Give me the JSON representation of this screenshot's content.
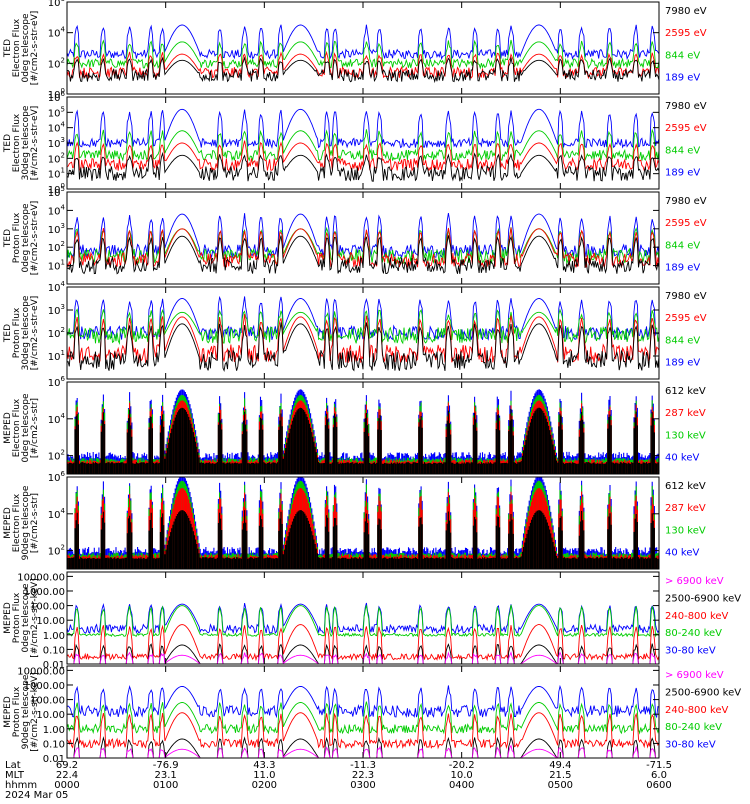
{
  "chart_data": [
    {
      "type": "line",
      "ylabel": [
        "TED",
        "Electron Flux",
        "0deg telescope",
        "[#/cm2-s-str-eV]"
      ],
      "yscale": "log",
      "ytick_style": "pow",
      "ylim_exp": [
        0,
        6
      ],
      "ytick_exps": [
        0,
        2,
        4,
        6
      ],
      "fill_to_bottom": false,
      "series": [
        {
          "name": "7980 eV",
          "color": "#000000",
          "base": 1.2,
          "noise": 0.4,
          "peak": 1.0
        },
        {
          "name": "2595 eV",
          "color": "#ff0000",
          "base": 1.4,
          "noise": 0.35,
          "peak": 1.2
        },
        {
          "name": "844 eV",
          "color": "#00cc00",
          "base": 2.0,
          "noise": 0.3,
          "peak": 1.4
        },
        {
          "name": "189 eV",
          "color": "#0000ff",
          "base": 2.6,
          "noise": 0.3,
          "peak": 1.9
        }
      ]
    },
    {
      "type": "line",
      "ylabel": [
        "TED",
        "Electron Flux",
        "30deg telescope",
        "[#/cm2-s-str-eV]"
      ],
      "yscale": "log",
      "ytick_style": "pow",
      "ylim_exp": [
        0,
        6
      ],
      "ytick_exps": [
        0,
        1,
        2,
        3,
        4,
        5,
        6
      ],
      "fill_to_bottom": false,
      "series": [
        {
          "name": "7980 eV",
          "color": "#000000",
          "base": 1.0,
          "noise": 0.5,
          "peak": 1.2
        },
        {
          "name": "2595 eV",
          "color": "#ff0000",
          "base": 1.6,
          "noise": 0.4,
          "peak": 1.4
        },
        {
          "name": "844 eV",
          "color": "#00cc00",
          "base": 2.2,
          "noise": 0.35,
          "peak": 1.6
        },
        {
          "name": "189 eV",
          "color": "#0000ff",
          "base": 3.0,
          "noise": 0.3,
          "peak": 2.2
        }
      ]
    },
    {
      "type": "line",
      "ylabel": [
        "TED",
        "Proton Flux",
        "0deg telescope",
        "[#/cm2-s-str-eV]"
      ],
      "yscale": "log",
      "ytick_style": "pow",
      "ylim_exp": [
        0,
        5
      ],
      "ytick_exps": [
        1,
        2,
        3,
        4,
        5
      ],
      "fill_to_bottom": false,
      "series": [
        {
          "name": "7980 eV",
          "color": "#000000",
          "base": 1.0,
          "noise": 0.45,
          "peak": 1.6
        },
        {
          "name": "2595 eV",
          "color": "#ff0000",
          "base": 1.3,
          "noise": 0.4,
          "peak": 1.7
        },
        {
          "name": "844 eV",
          "color": "#00cc00",
          "base": 1.5,
          "noise": 0.4,
          "peak": 1.5
        },
        {
          "name": "189 eV",
          "color": "#0000ff",
          "base": 1.8,
          "noise": 0.35,
          "peak": 2.0
        }
      ]
    },
    {
      "type": "line",
      "ylabel": [
        "TED",
        "Proton Flux",
        "30deg telescope",
        "[#/cm2-s-str-eV]"
      ],
      "yscale": "log",
      "ytick_style": "pow",
      "ylim_exp": [
        0,
        4
      ],
      "ytick_exps": [
        1,
        2,
        3,
        4
      ],
      "fill_to_bottom": false,
      "series": [
        {
          "name": "7980 eV",
          "color": "#000000",
          "base": 0.8,
          "noise": 0.45,
          "peak": 1.6
        },
        {
          "name": "2595 eV",
          "color": "#ff0000",
          "base": 1.1,
          "noise": 0.4,
          "peak": 1.6
        },
        {
          "name": "844 eV",
          "color": "#00cc00",
          "base": 1.9,
          "noise": 0.35,
          "peak": 1.0
        },
        {
          "name": "189 eV",
          "color": "#0000ff",
          "base": 2.0,
          "noise": 0.3,
          "peak": 1.5
        }
      ]
    },
    {
      "type": "line",
      "ylabel": [
        "MEPED",
        "Electron Flux",
        "0deg telescope",
        "[#/cm2-s-str]"
      ],
      "yscale": "log",
      "ytick_style": "pow",
      "ylim_exp": [
        1,
        6
      ],
      "ytick_exps": [
        2,
        4,
        6
      ],
      "fill_to_bottom": true,
      "series": [
        {
          "name": "612 keV",
          "color": "#000000",
          "base": 1.6,
          "noise": 0.05,
          "peak": 3.0
        },
        {
          "name": "287 keV",
          "color": "#ff0000",
          "base": 1.7,
          "noise": 0.1,
          "peak": 3.3
        },
        {
          "name": "130 keV",
          "color": "#00cc00",
          "base": 1.8,
          "noise": 0.1,
          "peak": 3.5
        },
        {
          "name": "40 keV",
          "color": "#0000ff",
          "base": 2.0,
          "noise": 0.2,
          "peak": 3.6
        }
      ]
    },
    {
      "type": "line",
      "ylabel": [
        "MEPED",
        "Electron Flux",
        "90deg telescope",
        "[#/cm2-s-str]"
      ],
      "yscale": "log",
      "ytick_style": "pow",
      "ylim_exp": [
        1,
        6
      ],
      "ytick_exps": [
        2,
        4,
        6
      ],
      "fill_to_bottom": true,
      "series": [
        {
          "name": "612 keV",
          "color": "#000000",
          "base": 1.6,
          "noise": 0.05,
          "peak": 2.6
        },
        {
          "name": "287 keV",
          "color": "#ff0000",
          "base": 1.7,
          "noise": 0.1,
          "peak": 3.7
        },
        {
          "name": "130 keV",
          "color": "#00cc00",
          "base": 1.8,
          "noise": 0.1,
          "peak": 4.0
        },
        {
          "name": "40 keV",
          "color": "#0000ff",
          "base": 2.0,
          "noise": 0.2,
          "peak": 4.1
        }
      ]
    },
    {
      "type": "line",
      "ylabel": [
        "MEPED",
        "Proton Flux",
        "0deg telescope",
        "[#/cm2-s-str-keV]"
      ],
      "yscale": "log",
      "ytick_style": "decimal",
      "ylim_exp": [
        -2,
        4.3
      ],
      "ytick_exps": [
        -2,
        -1,
        0,
        1,
        2,
        3,
        4
      ],
      "ytick_labels": [
        "0.01",
        "0.10",
        "1.00",
        "10.00",
        "100.00",
        "1000.00",
        "10000.00"
      ],
      "fill_to_bottom": false,
      "series": [
        {
          "name": "> 6900 keV",
          "color": "#ff00ff",
          "base": -2.0,
          "noise": 0.0,
          "peak": 0.6
        },
        {
          "name": "2500-6900 keV",
          "color": "#000000",
          "base": -2.0,
          "noise": 0.0,
          "peak": 1.3
        },
        {
          "name": "240-800 keV",
          "color": "#ff0000",
          "base": -1.5,
          "noise": 0.2,
          "peak": 2.2
        },
        {
          "name": "80-240 keV",
          "color": "#00cc00",
          "base": 0.0,
          "noise": 0.1,
          "peak": 2.0
        },
        {
          "name": "30-80 keV",
          "color": "#0000ff",
          "base": 0.4,
          "noise": 0.3,
          "peak": 1.7
        }
      ]
    },
    {
      "type": "line",
      "ylabel": [
        "MEPED",
        "Proton Flux",
        "90deg telescope",
        "[#/cm2-s-str-keV]"
      ],
      "yscale": "log",
      "ytick_style": "decimal",
      "ylim_exp": [
        -2,
        4.3
      ],
      "ytick_exps": [
        -2,
        -1,
        0,
        1,
        2,
        3,
        4
      ],
      "ytick_labels": [
        "0.01",
        "0.10",
        "1.00",
        "10.00",
        "100.00",
        "1000.00",
        "10000.00"
      ],
      "fill_to_bottom": false,
      "series": [
        {
          "name": "> 6900 keV",
          "color": "#ff00ff",
          "base": -2.0,
          "noise": 0.0,
          "peak": 0.6
        },
        {
          "name": "2500-6900 keV",
          "color": "#000000",
          "base": -2.0,
          "noise": 0.0,
          "peak": 1.3
        },
        {
          "name": "240-800 keV",
          "color": "#ff0000",
          "base": -1.0,
          "noise": 0.3,
          "peak": 2.1
        },
        {
          "name": "80-240 keV",
          "color": "#00cc00",
          "base": 0.0,
          "noise": 0.3,
          "peak": 1.8
        },
        {
          "name": "30-80 keV",
          "color": "#0000ff",
          "base": 1.2,
          "noise": 0.4,
          "peak": 1.7
        }
      ]
    }
  ],
  "time_axis": {
    "row_labels": [
      "Lat",
      "MLT",
      "hhmm",
      "2024 Mar 05"
    ],
    "ticks": [
      {
        "lat": "69.2",
        "mlt": "22.4",
        "hhmm": "0000"
      },
      {
        "lat": "-76.9",
        "mlt": "23.1",
        "hhmm": "0100"
      },
      {
        "lat": "43.3",
        "mlt": "11.0",
        "hhmm": "0200"
      },
      {
        "lat": "-11.3",
        "mlt": "22.3",
        "hhmm": "0300"
      },
      {
        "lat": "-20.2",
        "mlt": "10.0",
        "hhmm": "0400"
      },
      {
        "lat": "49.4",
        "mlt": "21.5",
        "hhmm": "0500"
      },
      {
        "lat": "-71.5",
        "mlt": "6.0",
        "hhmm": "0600"
      }
    ],
    "xlim_minutes": [
      0,
      360
    ],
    "belt_centers_minutes": [
      70,
      142,
      287
    ],
    "belt_half_width_minutes": 11,
    "spike_centers_minutes": [
      6,
      22,
      38,
      51,
      58,
      93,
      108,
      118,
      130,
      158,
      163,
      182,
      190,
      215,
      232,
      248,
      262,
      270,
      300,
      313,
      330,
      346,
      356
    ]
  }
}
